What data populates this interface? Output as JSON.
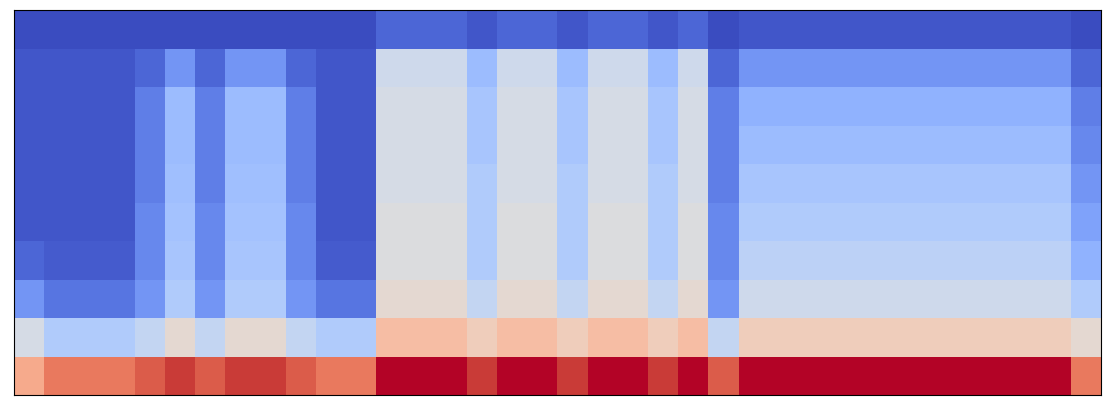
{
  "chart_data": {
    "type": "heatmap",
    "color": "coolwarm",
    "tick_labels": false,
    "values": [
      [
        0.6,
        0.7,
        0.7,
        0.7,
        0.75,
        0.8,
        0.75,
        0.8,
        0.8,
        0.75,
        0.7,
        0.7,
        0.85,
        0.85,
        0.85,
        0.8,
        0.85,
        0.85,
        0.8,
        0.85,
        0.85,
        0.8,
        0.85,
        0.75,
        0.85,
        0.85,
        0.85,
        0.85,
        0.85,
        0.85,
        0.85,
        0.85,
        0.85,
        0.85,
        0.85,
        0.7
      ],
      [
        0.4,
        0.3,
        0.3,
        0.3,
        0.35,
        0.45,
        0.35,
        0.45,
        0.45,
        0.35,
        0.3,
        0.3,
        0.55,
        0.55,
        0.55,
        0.5,
        0.55,
        0.55,
        0.5,
        0.55,
        0.55,
        0.5,
        0.55,
        0.35,
        0.5,
        0.5,
        0.5,
        0.5,
        0.5,
        0.5,
        0.5,
        0.5,
        0.5,
        0.5,
        0.5,
        0.45
      ],
      [
        0.15,
        0.08,
        0.08,
        0.08,
        0.15,
        0.3,
        0.15,
        0.3,
        0.3,
        0.15,
        0.08,
        0.08,
        0.45,
        0.45,
        0.45,
        0.35,
        0.45,
        0.45,
        0.35,
        0.45,
        0.45,
        0.35,
        0.45,
        0.15,
        0.38,
        0.38,
        0.38,
        0.38,
        0.38,
        0.38,
        0.38,
        0.38,
        0.38,
        0.38,
        0.38,
        0.3
      ],
      [
        0.05,
        0.03,
        0.03,
        0.03,
        0.12,
        0.28,
        0.12,
        0.28,
        0.28,
        0.12,
        0.03,
        0.03,
        0.42,
        0.42,
        0.42,
        0.3,
        0.42,
        0.42,
        0.3,
        0.42,
        0.42,
        0.3,
        0.42,
        0.12,
        0.33,
        0.33,
        0.33,
        0.33,
        0.33,
        0.33,
        0.33,
        0.33,
        0.33,
        0.33,
        0.33,
        0.22
      ],
      [
        0.02,
        0.02,
        0.02,
        0.02,
        0.12,
        0.27,
        0.12,
        0.27,
        0.27,
        0.12,
        0.02,
        0.02,
        0.42,
        0.42,
        0.42,
        0.3,
        0.42,
        0.42,
        0.3,
        0.42,
        0.42,
        0.3,
        0.42,
        0.12,
        0.3,
        0.3,
        0.3,
        0.3,
        0.3,
        0.3,
        0.3,
        0.3,
        0.3,
        0.3,
        0.3,
        0.18
      ],
      [
        0.02,
        0.02,
        0.02,
        0.02,
        0.1,
        0.26,
        0.1,
        0.26,
        0.26,
        0.1,
        0.02,
        0.02,
        0.4,
        0.4,
        0.4,
        0.3,
        0.4,
        0.4,
        0.3,
        0.4,
        0.4,
        0.3,
        0.4,
        0.1,
        0.28,
        0.28,
        0.28,
        0.28,
        0.28,
        0.28,
        0.28,
        0.28,
        0.28,
        0.28,
        0.28,
        0.15
      ],
      [
        0.02,
        0.02,
        0.02,
        0.02,
        0.1,
        0.25,
        0.1,
        0.25,
        0.25,
        0.1,
        0.02,
        0.02,
        0.4,
        0.4,
        0.4,
        0.28,
        0.4,
        0.4,
        0.28,
        0.4,
        0.4,
        0.28,
        0.4,
        0.1,
        0.25,
        0.25,
        0.25,
        0.25,
        0.25,
        0.25,
        0.25,
        0.25,
        0.25,
        0.25,
        0.25,
        0.12
      ],
      [
        0.02,
        0.02,
        0.02,
        0.02,
        0.1,
        0.25,
        0.1,
        0.25,
        0.25,
        0.1,
        0.02,
        0.02,
        0.4,
        0.4,
        0.4,
        0.28,
        0.4,
        0.4,
        0.28,
        0.4,
        0.4,
        0.28,
        0.4,
        0.1,
        0.22,
        0.22,
        0.22,
        0.22,
        0.22,
        0.22,
        0.22,
        0.22,
        0.22,
        0.22,
        0.22,
        0.1
      ],
      [
        0.02,
        0.02,
        0.02,
        0.02,
        0.05,
        0.15,
        0.05,
        0.15,
        0.15,
        0.05,
        0.02,
        0.02,
        0.38,
        0.38,
        0.38,
        0.25,
        0.38,
        0.38,
        0.25,
        0.38,
        0.38,
        0.25,
        0.38,
        0.05,
        0.15,
        0.15,
        0.15,
        0.15,
        0.15,
        0.15,
        0.15,
        0.15,
        0.15,
        0.15,
        0.15,
        0.05
      ],
      [
        0,
        0,
        0,
        0,
        0,
        0,
        0,
        0,
        0,
        0,
        0,
        0,
        0.05,
        0.05,
        0.05,
        0.02,
        0.05,
        0.05,
        0.02,
        0.05,
        0.05,
        0.02,
        0.05,
        0,
        0.02,
        0.02,
        0.02,
        0.02,
        0.02,
        0.02,
        0.02,
        0.02,
        0.02,
        0.02,
        0.02,
        0
      ]
    ]
  }
}
